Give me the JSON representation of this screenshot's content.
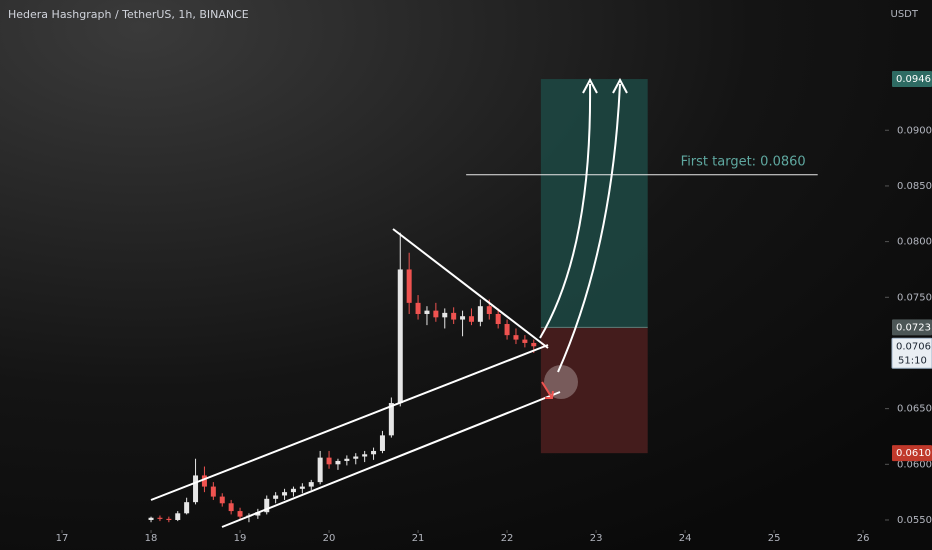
{
  "chart_data": {
    "type": "candlestick",
    "title": "Hedera Hashgraph / TetherUS, 1h, BINANCE",
    "y_axis_label": "USDT",
    "x": [
      18.0,
      18.1,
      18.2,
      18.3,
      18.4,
      18.5,
      18.6,
      18.7,
      18.8,
      18.9,
      19.0,
      19.1,
      19.2,
      19.3,
      19.4,
      19.5,
      19.6,
      19.7,
      19.8,
      19.9,
      20.0,
      20.1,
      20.2,
      20.3,
      20.4,
      20.5,
      20.6,
      20.7,
      20.8,
      20.9,
      21.0,
      21.1,
      21.2,
      21.3,
      21.4,
      21.5,
      21.6,
      21.7,
      21.8,
      21.9,
      22.0,
      22.1,
      22.2,
      22.3
    ],
    "open": [
      0.055,
      0.0552,
      0.0551,
      0.055,
      0.0556,
      0.0566,
      0.059,
      0.058,
      0.0571,
      0.0565,
      0.0558,
      0.0553,
      0.0554,
      0.0557,
      0.0569,
      0.0572,
      0.0575,
      0.0578,
      0.058,
      0.0584,
      0.0606,
      0.06,
      0.0603,
      0.0605,
      0.0607,
      0.0609,
      0.0612,
      0.0626,
      0.0655,
      0.0775,
      0.0745,
      0.0735,
      0.0738,
      0.0732,
      0.0736,
      0.073,
      0.0733,
      0.0728,
      0.0742,
      0.0735,
      0.0726,
      0.0716,
      0.0712,
      0.0709
    ],
    "high": [
      0.0553,
      0.0554,
      0.0553,
      0.0558,
      0.057,
      0.0605,
      0.0598,
      0.0584,
      0.0574,
      0.0568,
      0.0561,
      0.0556,
      0.056,
      0.0572,
      0.0575,
      0.0578,
      0.058,
      0.0583,
      0.0586,
      0.0612,
      0.0612,
      0.0605,
      0.0608,
      0.061,
      0.0612,
      0.0615,
      0.063,
      0.066,
      0.0808,
      0.079,
      0.0752,
      0.0742,
      0.0745,
      0.074,
      0.0741,
      0.0738,
      0.074,
      0.0748,
      0.0748,
      0.074,
      0.073,
      0.0722,
      0.0716,
      0.0712
    ],
    "low": [
      0.0548,
      0.0549,
      0.0548,
      0.0549,
      0.0555,
      0.0564,
      0.0575,
      0.0568,
      0.0562,
      0.0555,
      0.055,
      0.0548,
      0.0551,
      0.0555,
      0.0565,
      0.0568,
      0.0571,
      0.0574,
      0.0577,
      0.0582,
      0.0596,
      0.0595,
      0.0599,
      0.06,
      0.0602,
      0.0604,
      0.061,
      0.0624,
      0.0652,
      0.0735,
      0.073,
      0.0725,
      0.0728,
      0.0722,
      0.0726,
      0.0715,
      0.0725,
      0.0724,
      0.073,
      0.0722,
      0.0712,
      0.0708,
      0.0705,
      0.07
    ],
    "close": [
      0.0552,
      0.0551,
      0.055,
      0.0556,
      0.0566,
      0.059,
      0.058,
      0.0571,
      0.0565,
      0.0558,
      0.0553,
      0.0554,
      0.0557,
      0.0569,
      0.0572,
      0.0575,
      0.0578,
      0.058,
      0.0584,
      0.0606,
      0.06,
      0.0603,
      0.0605,
      0.0607,
      0.0609,
      0.0612,
      0.0626,
      0.0655,
      0.0775,
      0.0745,
      0.0735,
      0.0738,
      0.0732,
      0.0736,
      0.073,
      0.0733,
      0.0728,
      0.0742,
      0.0735,
      0.0726,
      0.0716,
      0.0712,
      0.0709,
      0.0706
    ],
    "up_color": "#e6e6e6",
    "down_color": "#ef5350",
    "xlim": [
      16.303,
      26.19
    ],
    "xticks": [
      17,
      18,
      19,
      20,
      21,
      22,
      23,
      24,
      25,
      26
    ],
    "ylim": [
      0.0541,
      0.1017
    ],
    "yticks": [
      {
        "value": 0.055,
        "label": "0.0550"
      },
      {
        "value": 0.06,
        "label": "0.0600"
      },
      {
        "value": 0.065,
        "label": "0.0650"
      },
      {
        "value": 0.075,
        "label": "0.0750"
      },
      {
        "value": 0.08,
        "label": "0.0800"
      },
      {
        "value": 0.085,
        "label": "0.0850"
      },
      {
        "value": 0.09,
        "label": "0.0900"
      }
    ],
    "last_price": 0.0706,
    "countdown": "51:10",
    "position": {
      "x": [
        22.38,
        23.58
      ],
      "target": 0.0946,
      "entry": 0.0723,
      "stop": {
        "value": 0.061,
        "label": "0.0610"
      }
    },
    "level": {
      "value": 0.086,
      "text": "First target: 0.0860",
      "x": [
        21.54,
        25.49
      ]
    }
  }
}
